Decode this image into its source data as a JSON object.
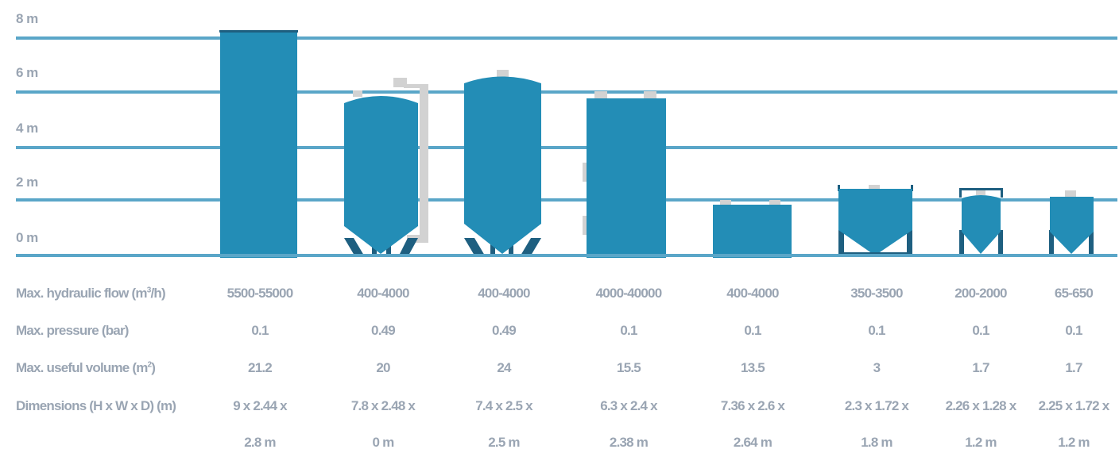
{
  "y_axis": {
    "labels": [
      "8 m",
      "6 m",
      "4 m",
      "2 m",
      "0 m"
    ]
  },
  "colors": {
    "grid": "#5aa6c8",
    "unit_fill": "#238db6",
    "unit_legs": "#1e5f80",
    "frame_grey": "#d2d2d2",
    "text": "#9aa5b3"
  },
  "rows": [
    {
      "label_pre": "Max. hydraulic flow (m",
      "label_sup": "3",
      "label_post": "/h)"
    },
    {
      "label_pre": "Max. pressure (bar)",
      "label_sup": "",
      "label_post": ""
    },
    {
      "label_pre": "Max. useful volume (m",
      "label_sup": "2",
      "label_post": ")"
    },
    {
      "label_pre": "Dimensions (H x W x D) (m)",
      "label_sup": "",
      "label_post": ""
    }
  ],
  "units": [
    {
      "flow": "5500-55000",
      "pressure": "0.1",
      "volume": "21.2",
      "dim1": "9 x 2.44 x",
      "dim2": "2.8 m",
      "shape": "tall-rect"
    },
    {
      "flow": "400-4000",
      "pressure": "0.49",
      "volume": "20",
      "dim1": "7.8 x 2.48 x",
      "dim2": "0 m",
      "shape": "cone-legs-frame"
    },
    {
      "flow": "400-4000",
      "pressure": "0.49",
      "volume": "24",
      "dim1": "7.4 x 2.5 x",
      "dim2": "2.5 m",
      "shape": "cone-legs-dome"
    },
    {
      "flow": "4000-40000",
      "pressure": "0.1",
      "volume": "15.5",
      "dim1": "6.3 x 2.4 x",
      "dim2": "2.38 m",
      "shape": "rect-side-frame"
    },
    {
      "flow": "400-4000",
      "pressure": "0.1",
      "volume": "13.5",
      "dim1": "7.36 x 2.6 x",
      "dim2": "2.64 m",
      "shape": "low-rect"
    },
    {
      "flow": "350-3500",
      "pressure": "0.1",
      "volume": "3",
      "dim1": "2.3 x 1.72 x",
      "dim2": "1.8 m",
      "shape": "small-hopper"
    },
    {
      "flow": "200-2000",
      "pressure": "0.1",
      "volume": "1.7",
      "dim1": "2.26 x 1.28 x",
      "dim2": "1.2 m",
      "shape": "mini-hopper-frame"
    },
    {
      "flow": "65-650",
      "pressure": "0.1",
      "volume": "1.7",
      "dim1": "2.25 x 1.72 x",
      "dim2": "1.2 m",
      "shape": "mini-hopper"
    }
  ]
}
